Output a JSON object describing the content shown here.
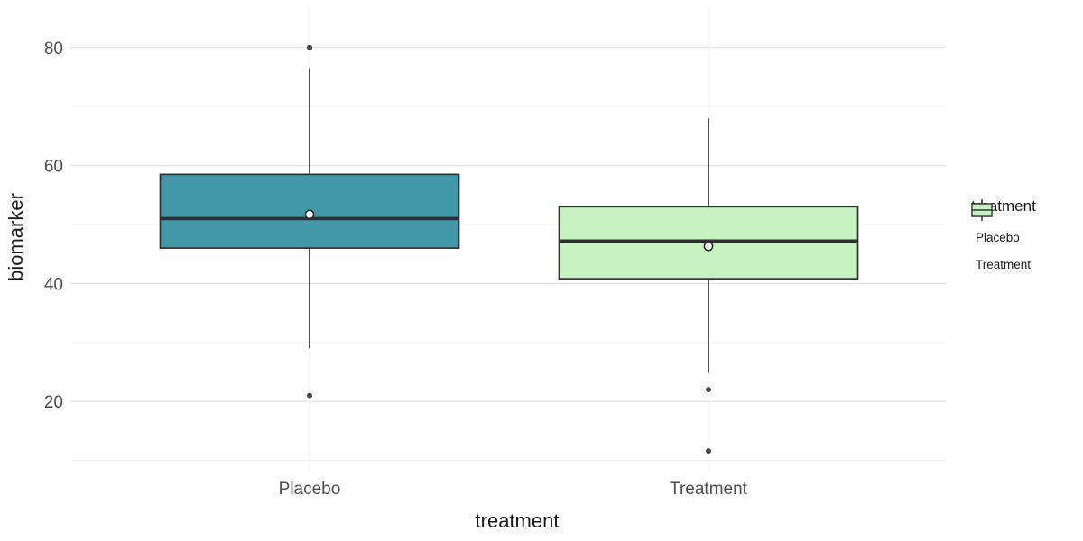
{
  "axes": {
    "x_title": "treatment",
    "y_title": "biomarker",
    "x_labels": [
      "Placebo",
      "Treatment"
    ],
    "y_tick_labels": [
      "20",
      "40",
      "60",
      "80"
    ]
  },
  "legend": {
    "title": "treatment",
    "items": [
      {
        "label": "Placebo",
        "fill": "#4398A8"
      },
      {
        "label": "Treatment",
        "fill": "#C7F2C2"
      }
    ]
  },
  "chart_data": {
    "type": "boxplot",
    "title": "",
    "xlabel": "treatment",
    "ylabel": "biomarker",
    "categories": [
      "Placebo",
      "Treatment"
    ],
    "ylim": [
      8.4,
      87
    ],
    "yticks": [
      20,
      40,
      60,
      80
    ],
    "yticks_minor": [
      10,
      30,
      50,
      70
    ],
    "grid": true,
    "legend_position": "right",
    "series": [
      {
        "name": "Placebo",
        "fill": "#4398A8",
        "q1": 46,
        "median": 51,
        "q3": 58.5,
        "mean": 51.7,
        "whisker_low": 29,
        "whisker_high": 76.5,
        "outliers": [
          80,
          21
        ]
      },
      {
        "name": "Treatment",
        "fill": "#C7F2C2",
        "q1": 40.8,
        "median": 47.2,
        "q3": 53,
        "mean": 46.3,
        "whisker_low": 24.8,
        "whisker_high": 68,
        "outliers": [
          22,
          11.6
        ]
      }
    ],
    "colors": {
      "box_stroke": "#333333",
      "median_line": "#2f2f2f",
      "outlier_fill": "#474747",
      "mean_fill": "#ffffff",
      "mean_stroke": "#222222",
      "grid_major": "#e4e4e4",
      "grid_minor": "#f0f0f0",
      "grid_vertical": "#ebebeb",
      "tick_text": "#4d4d4d",
      "axis_title_text": "#1a1a1a"
    }
  }
}
